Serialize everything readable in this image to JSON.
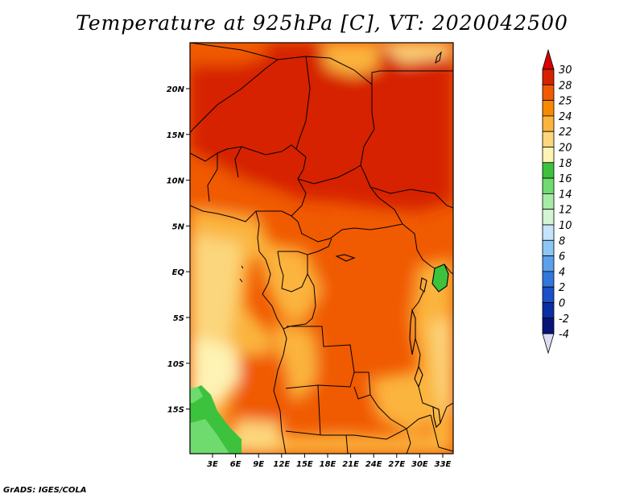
{
  "title": "Temperature at 925hPa [C], VT: 2020042500",
  "credit": "GrADS: IGES/COLA",
  "map": {
    "lat_ticks": [
      "20N",
      "15N",
      "10N",
      "5N",
      "EQ",
      "5S",
      "10S",
      "15S"
    ],
    "lon_ticks": [
      "3E",
      "6E",
      "9E",
      "12E",
      "15E",
      "18E",
      "21E",
      "24E",
      "27E",
      "30E",
      "33E"
    ],
    "lat_range": [
      -19.5,
      24.5
    ],
    "lon_range": [
      0.5,
      34.5
    ]
  },
  "colorbar": {
    "labels": [
      "30",
      "28",
      "25",
      "24",
      "22",
      "20",
      "18",
      "16",
      "14",
      "12",
      "10",
      "8",
      "6",
      "4",
      "2",
      "0",
      "-2",
      "-4"
    ],
    "colors": [
      "#a50000",
      "#d62200",
      "#f05a00",
      "#f78a00",
      "#fbb43c",
      "#fcd67c",
      "#fef3b4",
      "#3dc23d",
      "#6fdb6f",
      "#a8eba8",
      "#d4f5d4",
      "#c4e4fa",
      "#8cc6f5",
      "#5aa0ea",
      "#3278dc",
      "#1a50c8",
      "#0a2ea4",
      "#081478"
    ],
    "top_color": "#d80000",
    "bottom_color": "#dcdcf2"
  }
}
